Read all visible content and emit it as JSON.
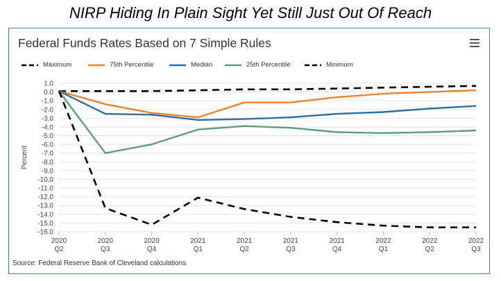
{
  "page_title": "NIRP Hiding In Plain Sight Yet Still Just Out Of Reach",
  "source_note": "Source: Federal Reserve Bank of Cleveland calculations",
  "menu_icon": "hamburger-menu-icon",
  "chart_data": {
    "type": "line",
    "title": "Federal Funds Rates Based on 7 Simple Rules",
    "xlabel": "",
    "ylabel": "Percent",
    "ylim": [
      -16.0,
      1.0
    ],
    "y_ticks": [
      "1.0",
      "0.0",
      "-1.0",
      "-2.0",
      "-3.0",
      "-4.0",
      "-5.0",
      "-6.0",
      "-7.0",
      "-8.0",
      "-9.0",
      "-10.0",
      "-11.0",
      "-12.0",
      "-13.0",
      "-14.0",
      "-15.0",
      "-16.0"
    ],
    "categories": [
      [
        "2020",
        "Q2"
      ],
      [
        "2020",
        "Q3"
      ],
      [
        "2020",
        "Q4"
      ],
      [
        "2021",
        "Q1"
      ],
      [
        "2021",
        "Q2"
      ],
      [
        "2021",
        "Q3"
      ],
      [
        "2021",
        "Q4"
      ],
      [
        "2022",
        "Q1"
      ],
      [
        "2022",
        "Q2"
      ],
      [
        "2022",
        "Q3"
      ]
    ],
    "grid": true,
    "legend_position": "top-left",
    "series": [
      {
        "name": "Maximum",
        "color": "#000000",
        "dash": true,
        "values": [
          0.1,
          0.1,
          0.1,
          0.2,
          0.3,
          0.3,
          0.4,
          0.5,
          0.6,
          0.7
        ]
      },
      {
        "name": "75th Percentile",
        "color": "#e8852a",
        "dash": false,
        "values": [
          0.1,
          -1.4,
          -2.4,
          -2.9,
          -1.2,
          -1.2,
          -0.6,
          -0.2,
          0.0,
          0.2
        ]
      },
      {
        "name": "Median",
        "color": "#2e6da4",
        "dash": false,
        "values": [
          0.1,
          -2.5,
          -2.6,
          -3.2,
          -3.1,
          -2.9,
          -2.5,
          -2.3,
          -1.9,
          -1.6
        ]
      },
      {
        "name": "25th Percentile",
        "color": "#5a9e78",
        "dash": false,
        "values": [
          0.1,
          -7.0,
          -6.0,
          -4.3,
          -3.9,
          -4.1,
          -4.6,
          -4.7,
          -4.6,
          -4.4
        ]
      },
      {
        "name": "Minimum",
        "color": "#000000",
        "dash": true,
        "values": [
          0.1,
          -13.3,
          -15.2,
          -12.1,
          -13.4,
          -14.3,
          -14.9,
          -15.3,
          -15.5,
          -15.5
        ]
      }
    ]
  }
}
